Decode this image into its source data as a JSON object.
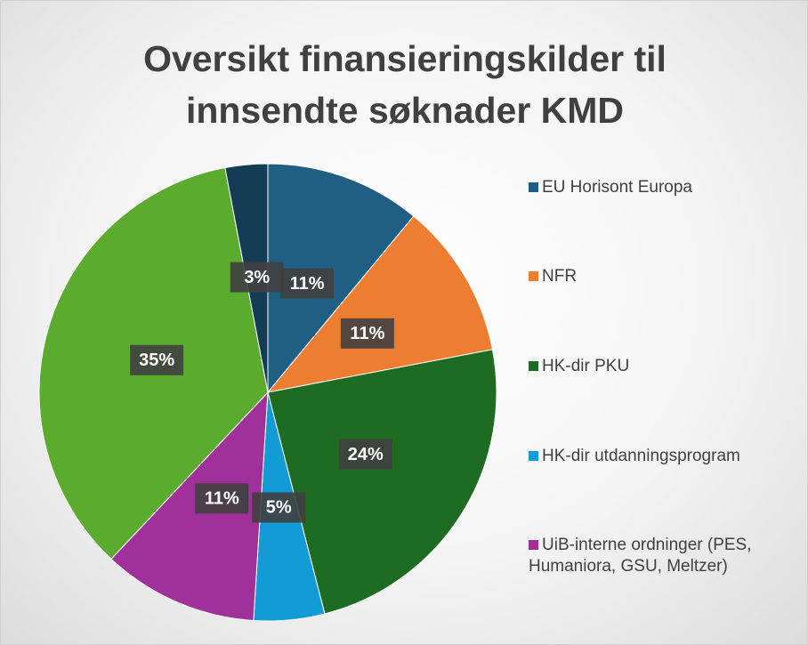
{
  "chart_data": {
    "type": "pie",
    "title": "Oversikt finansieringskilder til innsendte søknader KMD",
    "categories": [
      "EU Horisont Europa",
      "NFR",
      "HK-dir PKU",
      "HK-dir utdanningsprogram",
      "UiB-interne ordninger (PES, Humaniora, GSU, Meltzer)",
      null,
      null
    ],
    "values": [
      11,
      11,
      24,
      5,
      11,
      35,
      3
    ],
    "value_labels": [
      "11%",
      "11%",
      "24%",
      "5%",
      "11%",
      "35%",
      "3%"
    ],
    "colors": [
      "#1f5f84",
      "#ed7d31",
      "#1e6b22",
      "#139bd6",
      "#a0309a",
      "#5aab2e",
      "#143c55"
    ],
    "legend": "right"
  }
}
